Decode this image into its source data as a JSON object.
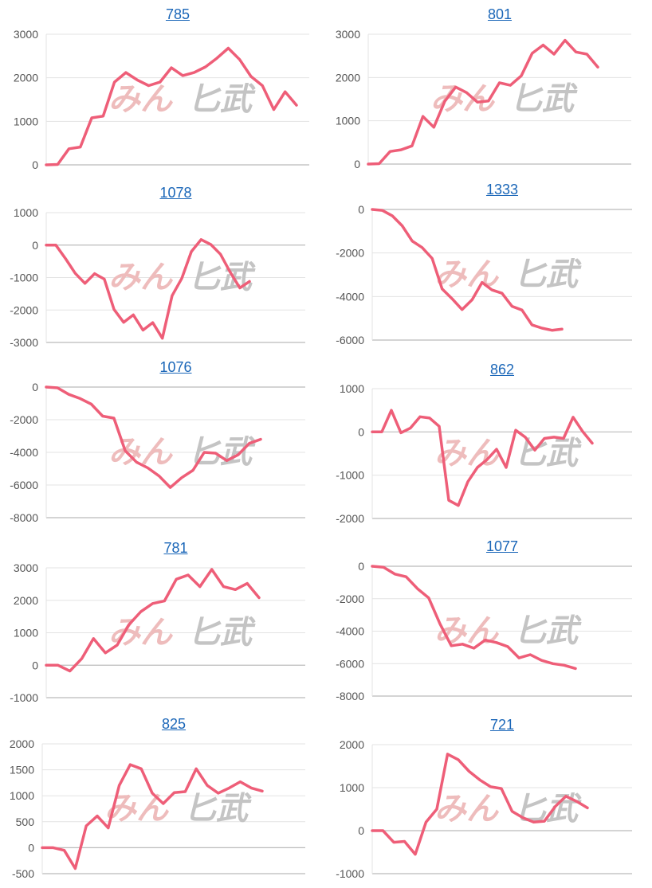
{
  "colors": {
    "line": "#ee5e78",
    "grid": "#e3e3e3",
    "axis": "#bbbbbb",
    "title": "#1a66b8",
    "tick": "#555555",
    "watermark_left": "#eebcbc",
    "watermark_right": "#c4c4c4"
  },
  "watermark": {
    "left": "みん",
    "right": "匕武"
  },
  "chart_data": [
    {
      "type": "line",
      "title": "785",
      "yticks": [
        0,
        1000,
        2000,
        3000
      ],
      "ylim": [
        0,
        3000
      ],
      "values": [
        0,
        10,
        370,
        410,
        1080,
        1120,
        1900,
        2120,
        1950,
        1820,
        1900,
        2230,
        2050,
        2120,
        2250,
        2450,
        2680,
        2420,
        2030,
        1820,
        1270,
        1680,
        1370
      ]
    },
    {
      "type": "line",
      "title": "801",
      "yticks": [
        0,
        1000,
        2000,
        3000
      ],
      "ylim": [
        0,
        3000
      ],
      "values": [
        0,
        10,
        290,
        330,
        420,
        1100,
        850,
        1450,
        1780,
        1650,
        1430,
        1460,
        1880,
        1820,
        2040,
        2560,
        2750,
        2540,
        2860,
        2590,
        2540,
        2240
      ]
    },
    {
      "type": "line",
      "title": "1078",
      "yticks": [
        -3000,
        -2000,
        -1000,
        0,
        1000
      ],
      "ylim": [
        -3000,
        1000
      ],
      "values": [
        0,
        0,
        -420,
        -870,
        -1180,
        -880,
        -1050,
        -1980,
        -2380,
        -2150,
        -2620,
        -2390,
        -2870,
        -1560,
        -1030,
        -200,
        170,
        20,
        -280,
        -830,
        -1320,
        -1120
      ]
    },
    {
      "type": "line",
      "title": "1333",
      "yticks": [
        -6000,
        -4000,
        -2000,
        0
      ],
      "ylim": [
        -6000,
        0
      ],
      "values": [
        0,
        -40,
        -290,
        -750,
        -1450,
        -1750,
        -2250,
        -3650,
        -4100,
        -4600,
        -4150,
        -3350,
        -3700,
        -3850,
        -4450,
        -4620,
        -5300,
        -5450,
        -5550,
        -5500
      ]
    },
    {
      "type": "line",
      "title": "1076",
      "yticks": [
        -8000,
        -6000,
        -4000,
        -2000,
        0
      ],
      "ylim": [
        -8000,
        0
      ],
      "values": [
        0,
        -50,
        -450,
        -700,
        -1050,
        -1780,
        -1900,
        -3900,
        -4600,
        -4950,
        -5450,
        -6150,
        -5550,
        -5100,
        -4000,
        -4050,
        -4500,
        -4150,
        -3450,
        -3200
      ]
    },
    {
      "type": "line",
      "title": "862",
      "yticks": [
        -2000,
        -1000,
        0,
        1000
      ],
      "ylim": [
        -2000,
        1000
      ],
      "values": [
        0,
        0,
        500,
        -20,
        90,
        350,
        320,
        130,
        -1580,
        -1700,
        -1150,
        -820,
        -640,
        -400,
        -820,
        40,
        -120,
        -420,
        -150,
        -120,
        -150,
        340,
        10,
        -260
      ]
    },
    {
      "type": "line",
      "title": "781",
      "yticks": [
        -1000,
        0,
        1000,
        2000,
        3000
      ],
      "ylim": [
        -1000,
        3000
      ],
      "values": [
        0,
        0,
        -180,
        200,
        820,
        380,
        620,
        1250,
        1650,
        1900,
        1980,
        2650,
        2780,
        2420,
        2950,
        2420,
        2330,
        2520,
        2080
      ]
    },
    {
      "type": "line",
      "title": "1077",
      "yticks": [
        -8000,
        -6000,
        -4000,
        -2000,
        0
      ],
      "ylim": [
        -8000,
        0
      ],
      "values": [
        0,
        -60,
        -480,
        -650,
        -1380,
        -1950,
        -3550,
        -4900,
        -4800,
        -5050,
        -4550,
        -4700,
        -4950,
        -5650,
        -5450,
        -5800,
        -6000,
        -6100,
        -6300
      ]
    },
    {
      "type": "line",
      "title": "825",
      "yticks": [
        -500,
        0,
        500,
        1000,
        1500,
        2000
      ],
      "ylim": [
        -500,
        2000
      ],
      "values": [
        0,
        0,
        -50,
        -400,
        420,
        610,
        380,
        1200,
        1600,
        1520,
        1050,
        850,
        1060,
        1080,
        1520,
        1200,
        1050,
        1150,
        1270,
        1150,
        1090
      ]
    },
    {
      "type": "line",
      "title": "721",
      "yticks": [
        -1000,
        0,
        1000,
        2000
      ],
      "ylim": [
        -1000,
        2000
      ],
      "values": [
        0,
        0,
        -270,
        -250,
        -550,
        200,
        500,
        1780,
        1650,
        1380,
        1180,
        1020,
        980,
        450,
        300,
        200,
        220,
        560,
        800,
        680,
        530
      ]
    }
  ]
}
